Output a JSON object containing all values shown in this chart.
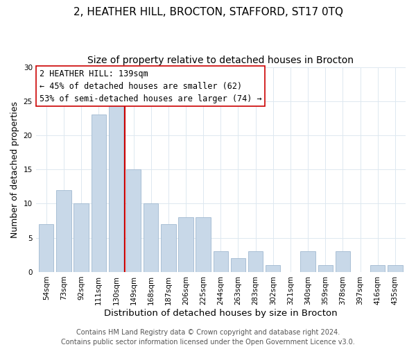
{
  "title": "2, HEATHER HILL, BROCTON, STAFFORD, ST17 0TQ",
  "subtitle": "Size of property relative to detached houses in Brocton",
  "xlabel": "Distribution of detached houses by size in Brocton",
  "ylabel": "Number of detached properties",
  "bar_labels": [
    "54sqm",
    "73sqm",
    "92sqm",
    "111sqm",
    "130sqm",
    "149sqm",
    "168sqm",
    "187sqm",
    "206sqm",
    "225sqm",
    "244sqm",
    "263sqm",
    "283sqm",
    "302sqm",
    "321sqm",
    "340sqm",
    "359sqm",
    "378sqm",
    "397sqm",
    "416sqm",
    "435sqm"
  ],
  "bar_values": [
    7,
    12,
    10,
    23,
    25,
    15,
    10,
    7,
    8,
    8,
    3,
    2,
    3,
    1,
    0,
    3,
    1,
    3,
    0,
    1,
    1
  ],
  "bar_color": "#c8d8e8",
  "bar_edge_color": "#a0b8d0",
  "reference_line_x": 4.5,
  "reference_line_color": "#cc0000",
  "ylim": [
    0,
    30
  ],
  "yticks": [
    0,
    5,
    10,
    15,
    20,
    25,
    30
  ],
  "annotation_title": "2 HEATHER HILL: 139sqm",
  "annotation_line1": "← 45% of detached houses are smaller (62)",
  "annotation_line2": "53% of semi-detached houses are larger (74) →",
  "footer_line1": "Contains HM Land Registry data © Crown copyright and database right 2024.",
  "footer_line2": "Contains public sector information licensed under the Open Government Licence v3.0.",
  "title_fontsize": 11,
  "subtitle_fontsize": 10,
  "xlabel_fontsize": 9.5,
  "ylabel_fontsize": 9,
  "tick_fontsize": 7.5,
  "annotation_fontsize": 8.5,
  "footer_fontsize": 7,
  "bg_color": "#ffffff",
  "grid_color": "#dde8f0"
}
